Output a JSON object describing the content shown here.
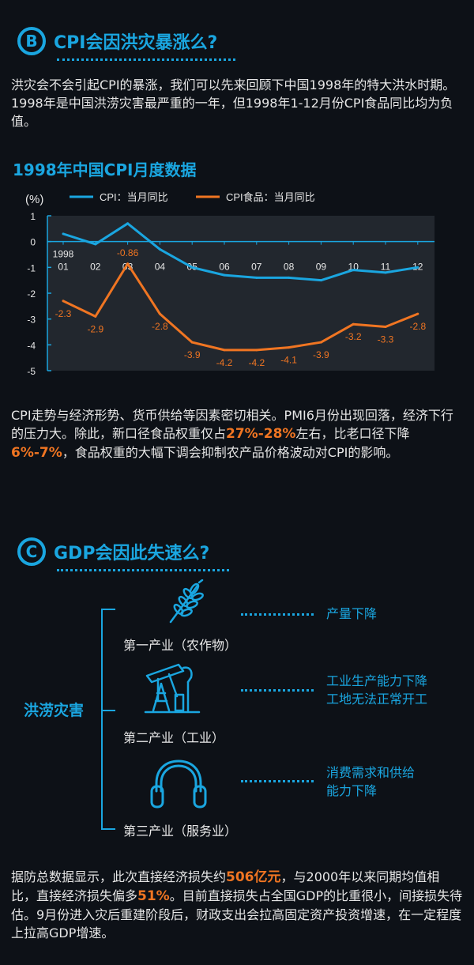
{
  "section_b": {
    "badge": "B",
    "title": "CPI会因洪灾暴涨么?",
    "intro": "洪灾会不会引起CPI的暴涨，我们可以先来回顾下中国1998年的特大洪水时期。1998年是中国洪涝灾害最严重的一年，但1998年1-12月份CPI食品同比均为负值。"
  },
  "chart_data": {
    "type": "line",
    "title": "1998年中国CPI月度数据",
    "ylabel": "(%)",
    "ylim": [
      -5,
      1
    ],
    "yticks": [
      "1",
      "0",
      "-1",
      "-2",
      "-3",
      "-4",
      "-5"
    ],
    "year_label": "1998",
    "categories": [
      "01",
      "02",
      "03",
      "04",
      "05",
      "06",
      "07",
      "08",
      "09",
      "10",
      "11",
      "12"
    ],
    "series": [
      {
        "name": "CPI：当月同比",
        "color": "#1aa6e0",
        "values": [
          0.3,
          -0.1,
          0.7,
          -0.3,
          -1.0,
          -1.3,
          -1.4,
          -1.4,
          -1.5,
          -1.1,
          -1.2,
          -1.0
        ]
      },
      {
        "name": "CPI食品：当月同比",
        "color": "#f07522",
        "values": [
          -2.3,
          -2.9,
          -0.86,
          -2.8,
          -3.9,
          -4.2,
          -4.2,
          -4.1,
          -3.9,
          -3.2,
          -3.3,
          -2.8
        ],
        "data_labels": [
          "-2.3",
          "-2.9",
          "-0.86",
          "-2.8",
          "-3.9",
          "-4.2",
          "-4.2",
          "-4.1",
          "-3.9",
          "-3.2",
          "-3.3",
          "-2.8"
        ]
      }
    ],
    "legend_position": "top",
    "grid": false
  },
  "analysis": {
    "p1": "CPI走势与经济形势、货币供给等因素密切相关。PMI6月份出现回落，经济下行的压力大。除此，新口径食品权重仅占",
    "hl1": "27%-28%",
    "p2": "左右，比老口径下降",
    "hl2": "6%-7%",
    "p3": "，食品权重的大幅下调会抑制农产品价格波动对CPI的影响。"
  },
  "section_c": {
    "badge": "C",
    "title": "GDP会因此失速么?",
    "root": "洪涝灾害",
    "industries": [
      {
        "label": "第一产业（农作物）",
        "icon": "wheat-icon",
        "effects": [
          "产量下降"
        ]
      },
      {
        "label": "第二产业（工业）",
        "icon": "oil-pump-icon",
        "effects": [
          "工业生产能力下降",
          "工地无法正常开工"
        ]
      },
      {
        "label": "第三产业（服务业）",
        "icon": "headphones-icon",
        "effects": [
          "消费需求和供给",
          "能力下降"
        ]
      }
    ]
  },
  "conclusion": {
    "p1": "据防总数据显示，此次直接经济损失约",
    "hl1": "506亿元",
    "p2": "，与2000年以来同期均值相比，直接经济损失偏多",
    "hl2": "51%",
    "p3": "。目前直接损失占全国GDP的比重很小，间接损失待估。9月份进入灾后重建阶段后，财政支出会拉高固定资产投资增速，在一定程度上拉高GDP增速。"
  },
  "colors": {
    "accent": "#1aa6e0",
    "highlight": "#f07522",
    "background": "#0d1117",
    "plot_bg": "#22272e"
  }
}
